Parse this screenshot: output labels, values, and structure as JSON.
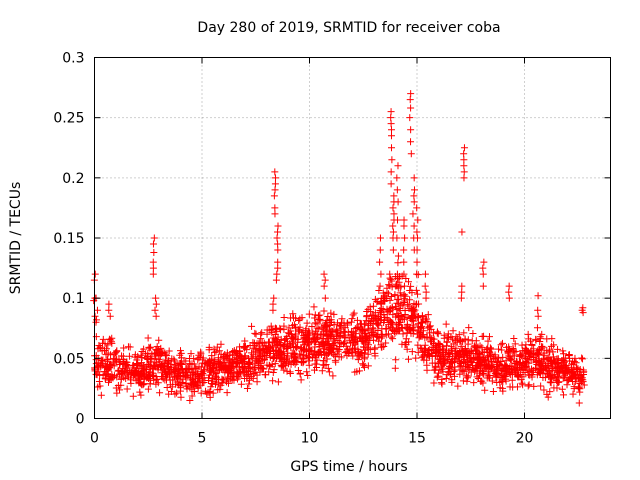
{
  "chart_data": {
    "type": "scatter",
    "title": "Day 280 of 2019, SRMTID for receiver coba",
    "xlabel": "GPS time / hours",
    "ylabel": "SRMTID / TECUs",
    "xlim": [
      0,
      24
    ],
    "ylim": [
      0,
      0.3
    ],
    "xticks": [
      0,
      5,
      10,
      15,
      20
    ],
    "xtick_labels": [
      "0",
      "5",
      "10",
      "15",
      "20"
    ],
    "yticks": [
      0,
      0.05,
      0.1,
      0.15,
      0.2,
      0.25,
      0.3
    ],
    "ytick_labels": [
      "0",
      "0.05",
      "0.1",
      "0.15",
      "0.2",
      "0.25",
      "0.3"
    ],
    "grid": true,
    "marker": "plus",
    "series": [
      {
        "name": "SRMTID",
        "color": "#ff0000",
        "envelope": {
          "x": [
            0,
            0.5,
            1,
            1.5,
            2,
            2.5,
            3,
            3.5,
            4,
            4.5,
            5,
            5.5,
            6,
            6.5,
            7,
            7.5,
            8,
            8.5,
            9,
            9.5,
            10,
            10.5,
            11,
            11.5,
            12,
            12.5,
            13,
            13.5,
            14,
            14.5,
            15,
            15.5,
            16,
            16.5,
            17,
            17.5,
            18,
            18.5,
            19,
            19.5,
            20,
            20.5,
            21,
            21.5,
            22,
            22.5,
            22.8
          ],
          "median": [
            0.05,
            0.045,
            0.042,
            0.04,
            0.038,
            0.042,
            0.045,
            0.04,
            0.038,
            0.036,
            0.037,
            0.04,
            0.042,
            0.044,
            0.046,
            0.05,
            0.055,
            0.058,
            0.06,
            0.06,
            0.062,
            0.065,
            0.065,
            0.066,
            0.066,
            0.065,
            0.075,
            0.085,
            0.09,
            0.088,
            0.08,
            0.06,
            0.05,
            0.05,
            0.052,
            0.05,
            0.048,
            0.045,
            0.042,
            0.044,
            0.048,
            0.05,
            0.045,
            0.04,
            0.038,
            0.035,
            0.035
          ],
          "spread": [
            0.022,
            0.018,
            0.018,
            0.017,
            0.015,
            0.02,
            0.02,
            0.017,
            0.016,
            0.015,
            0.016,
            0.017,
            0.018,
            0.018,
            0.018,
            0.02,
            0.02,
            0.022,
            0.022,
            0.024,
            0.024,
            0.024,
            0.024,
            0.022,
            0.022,
            0.022,
            0.028,
            0.03,
            0.032,
            0.032,
            0.03,
            0.025,
            0.022,
            0.02,
            0.022,
            0.02,
            0.02,
            0.02,
            0.02,
            0.02,
            0.02,
            0.02,
            0.02,
            0.018,
            0.016,
            0.015,
            0.015
          ]
        },
        "spikes": [
          {
            "x": 0.0,
            "values": [
              0.12,
              0.115,
              0.1,
              0.098,
              0.085
            ]
          },
          {
            "x": 0.1,
            "values": [
              0.1,
              0.09,
              0.082,
              0.08
            ]
          },
          {
            "x": 0.7,
            "values": [
              0.095,
              0.09,
              0.085
            ]
          },
          {
            "x": 2.75,
            "values": [
              0.15,
              0.145,
              0.138,
              0.13,
              0.125,
              0.12
            ]
          },
          {
            "x": 2.85,
            "values": [
              0.1,
              0.095,
              0.09,
              0.085
            ]
          },
          {
            "x": 8.4,
            "values": [
              0.205,
              0.2,
              0.195,
              0.19,
              0.185,
              0.175,
              0.17
            ]
          },
          {
            "x": 8.5,
            "values": [
              0.16,
              0.155,
              0.15,
              0.145,
              0.14,
              0.13,
              0.125,
              0.12,
              0.115
            ]
          },
          {
            "x": 8.3,
            "values": [
              0.1,
              0.095,
              0.09
            ]
          },
          {
            "x": 10.7,
            "values": [
              0.12,
              0.115,
              0.11,
              0.1
            ]
          },
          {
            "x": 13.8,
            "values": [
              0.255,
              0.25,
              0.245,
              0.24,
              0.235,
              0.225,
              0.215,
              0.205,
              0.195
            ]
          },
          {
            "x": 13.9,
            "values": [
              0.185,
              0.18,
              0.175,
              0.17,
              0.165,
              0.16,
              0.155,
              0.15,
              0.14
            ]
          },
          {
            "x": 14.1,
            "values": [
              0.21,
              0.2,
              0.19,
              0.18,
              0.165,
              0.15,
              0.135,
              0.12
            ]
          },
          {
            "x": 14.7,
            "values": [
              0.27,
              0.265,
              0.258,
              0.25,
              0.24,
              0.23,
              0.22
            ]
          },
          {
            "x": 14.85,
            "values": [
              0.2,
              0.19,
              0.185,
              0.18,
              0.17,
              0.16,
              0.15,
              0.14
            ]
          },
          {
            "x": 15.0,
            "values": [
              0.175,
              0.165,
              0.155,
              0.15,
              0.14,
              0.13,
              0.12
            ]
          },
          {
            "x": 14.4,
            "values": [
              0.165,
              0.16,
              0.15,
              0.14,
              0.13,
              0.12,
              0.11
            ]
          },
          {
            "x": 13.3,
            "values": [
              0.15,
              0.14,
              0.13,
              0.12,
              0.11
            ]
          },
          {
            "x": 15.4,
            "values": [
              0.12,
              0.11,
              0.105,
              0.1
            ]
          },
          {
            "x": 17.2,
            "values": [
              0.225,
              0.22,
              0.215,
              0.21,
              0.205,
              0.2
            ]
          },
          {
            "x": 17.1,
            "values": [
              0.155,
              0.11,
              0.105,
              0.1
            ]
          },
          {
            "x": 18.1,
            "values": [
              0.13,
              0.125,
              0.12,
              0.11
            ]
          },
          {
            "x": 19.3,
            "values": [
              0.11,
              0.105,
              0.1
            ]
          },
          {
            "x": 20.6,
            "values": [
              0.102,
              0.09,
              0.085
            ]
          },
          {
            "x": 22.7,
            "values": [
              0.092,
              0.09,
              0.088
            ]
          }
        ]
      }
    ]
  }
}
